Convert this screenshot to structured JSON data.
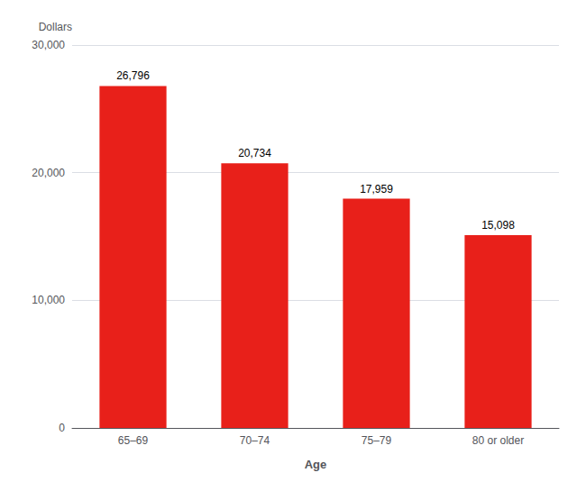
{
  "chart_data": {
    "type": "bar",
    "categories": [
      "65–69",
      "70–74",
      "75–79",
      "80 or older"
    ],
    "values": [
      26796,
      20734,
      17959,
      15098
    ],
    "value_labels": [
      "26,796",
      "20,734",
      "17,959",
      "15,098"
    ],
    "color": "#e8201a",
    "xlabel": "Age",
    "ylabel": "Dollars",
    "ylim": [
      0,
      30000
    ],
    "yticks": [
      0,
      {
        "value": 10000,
        "label": "10,000"
      },
      {
        "value": 20000,
        "label": "20,000"
      },
      {
        "value": 30000,
        "label": "30,000"
      }
    ],
    "grid": true,
    "data_labels": true
  }
}
